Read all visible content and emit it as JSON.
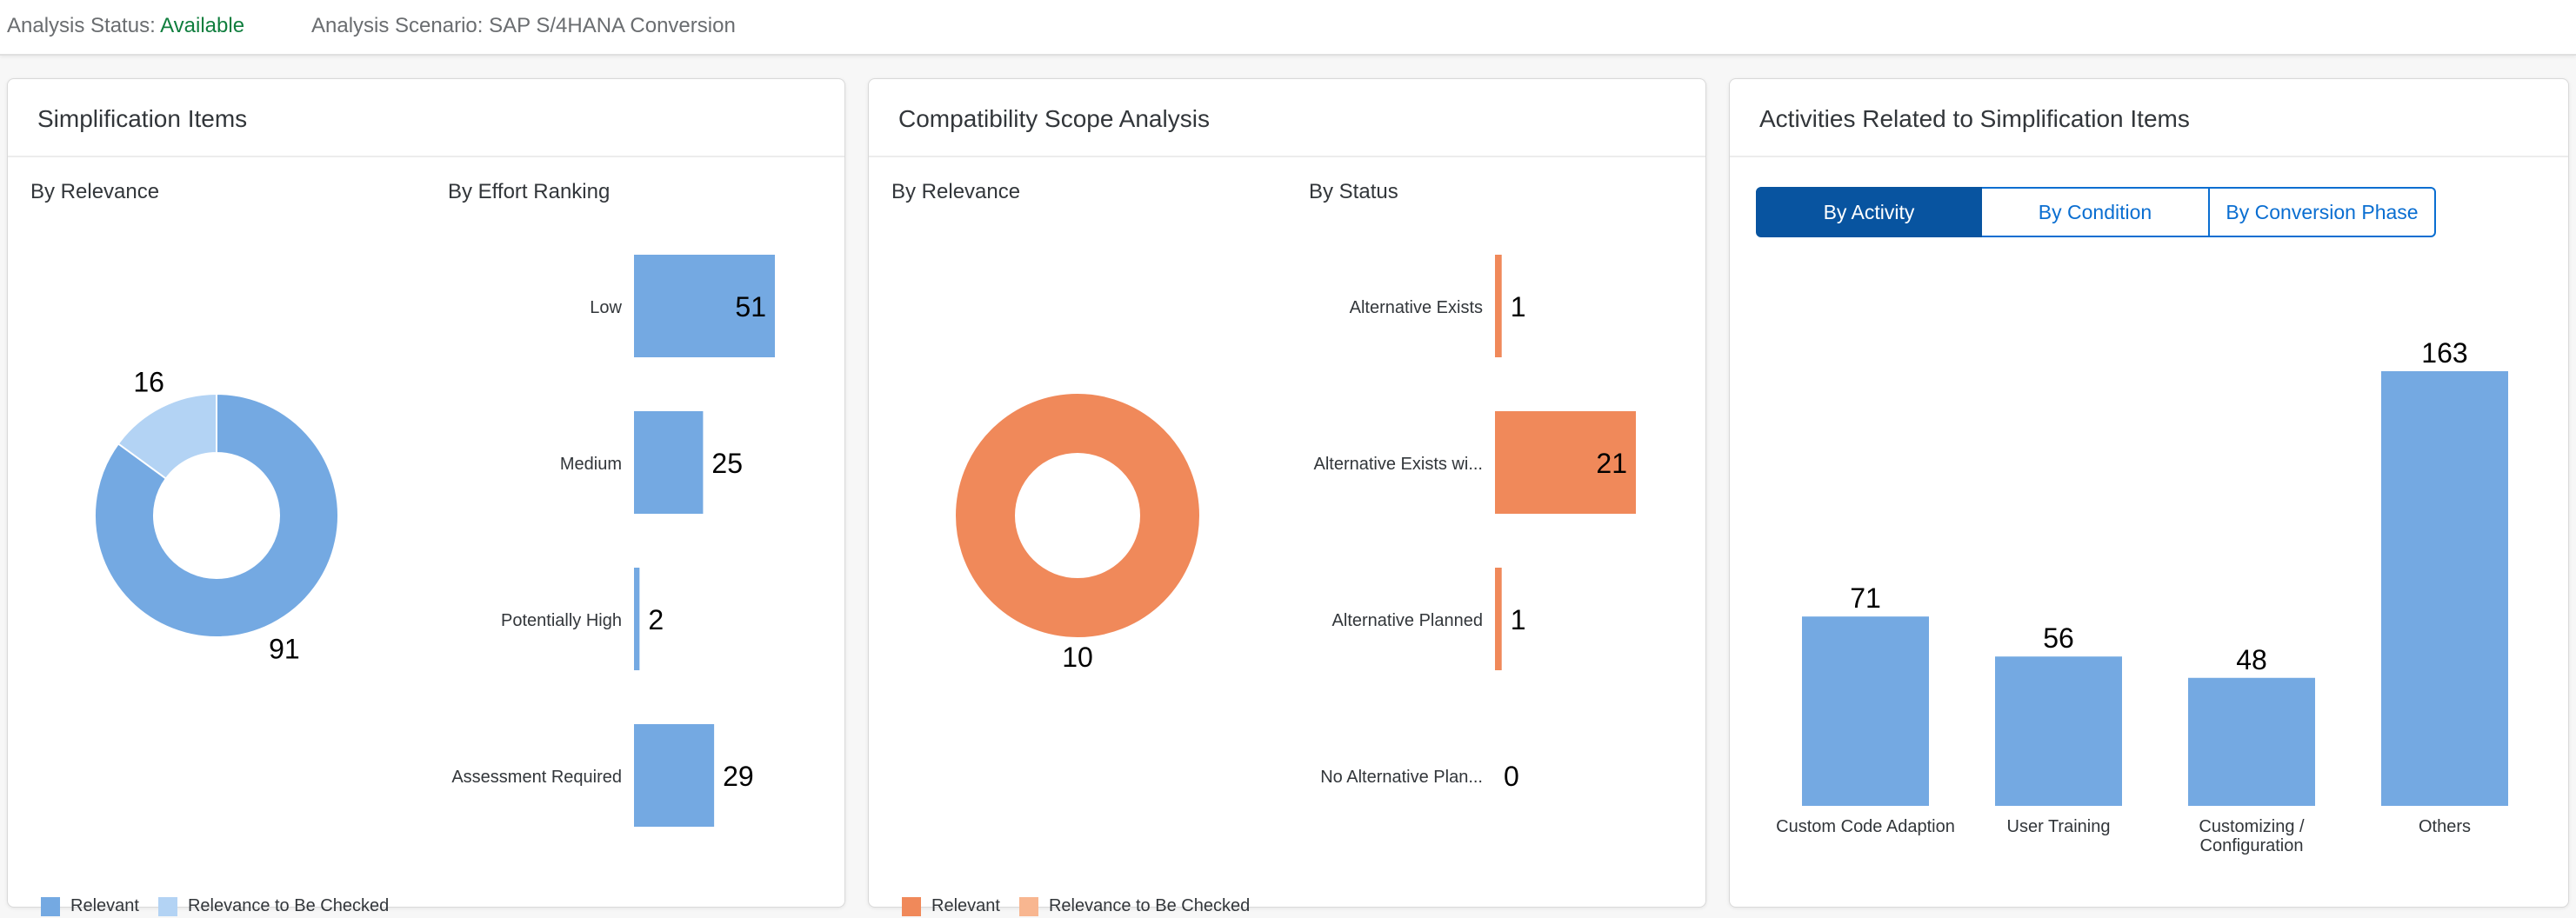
{
  "status_bar": {
    "analysis_status_label": "Analysis Status:",
    "analysis_status_value": "Available",
    "analysis_scenario": "Analysis Scenario: SAP S/4HANA Conversion"
  },
  "colors": {
    "relevant_blue": "#74a9e2",
    "to_check_blue": "#b3d3f4",
    "relevant_orange": "#f0895a",
    "to_check_orange": "#f8b690",
    "tab_active": "#0854a0",
    "status_green": "#107e3e"
  },
  "simplification": {
    "title": "Simplification Items",
    "by_relevance": "By Relevance",
    "by_effort": "By Effort Ranking",
    "legend": [
      "Relevant",
      "Relevance to Be Checked"
    ]
  },
  "compatibility": {
    "title": "Compatibility Scope Analysis",
    "by_relevance": "By Relevance",
    "by_status": "By Status",
    "legend": [
      "Relevant",
      "Relevance to Be Checked"
    ]
  },
  "activities": {
    "title": "Activities Related to Simplification Items",
    "tabs": [
      "By Activity",
      "By Condition",
      "By Conversion Phase"
    ],
    "active_tab": "By Activity"
  },
  "chart_data": [
    {
      "type": "pie",
      "title": "By Relevance",
      "categories": [
        "Relevant",
        "Relevance to Be Checked"
      ],
      "values": [
        91,
        16
      ]
    },
    {
      "type": "bar",
      "title": "By Effort Ranking",
      "categories": [
        "Low",
        "Medium",
        "Potentially High",
        "Assessment Required"
      ],
      "values": [
        51,
        25,
        2,
        29
      ]
    },
    {
      "type": "pie",
      "title": "By Relevance",
      "categories": [
        "Relevant",
        "Relevance to Be Checked"
      ],
      "values": [
        10,
        0
      ]
    },
    {
      "type": "bar",
      "title": "By Status",
      "categories": [
        "Alternative Exists",
        "Alternative Exists wi...",
        "Alternative Planned",
        "No Alternative Plan..."
      ],
      "values": [
        1,
        21,
        1,
        0
      ]
    },
    {
      "type": "bar",
      "title": "By Activity",
      "categories": [
        "Custom Code Adaption",
        "User Training",
        "Customizing / Configuration",
        "Others"
      ],
      "values": [
        71,
        56,
        48,
        163
      ]
    }
  ]
}
